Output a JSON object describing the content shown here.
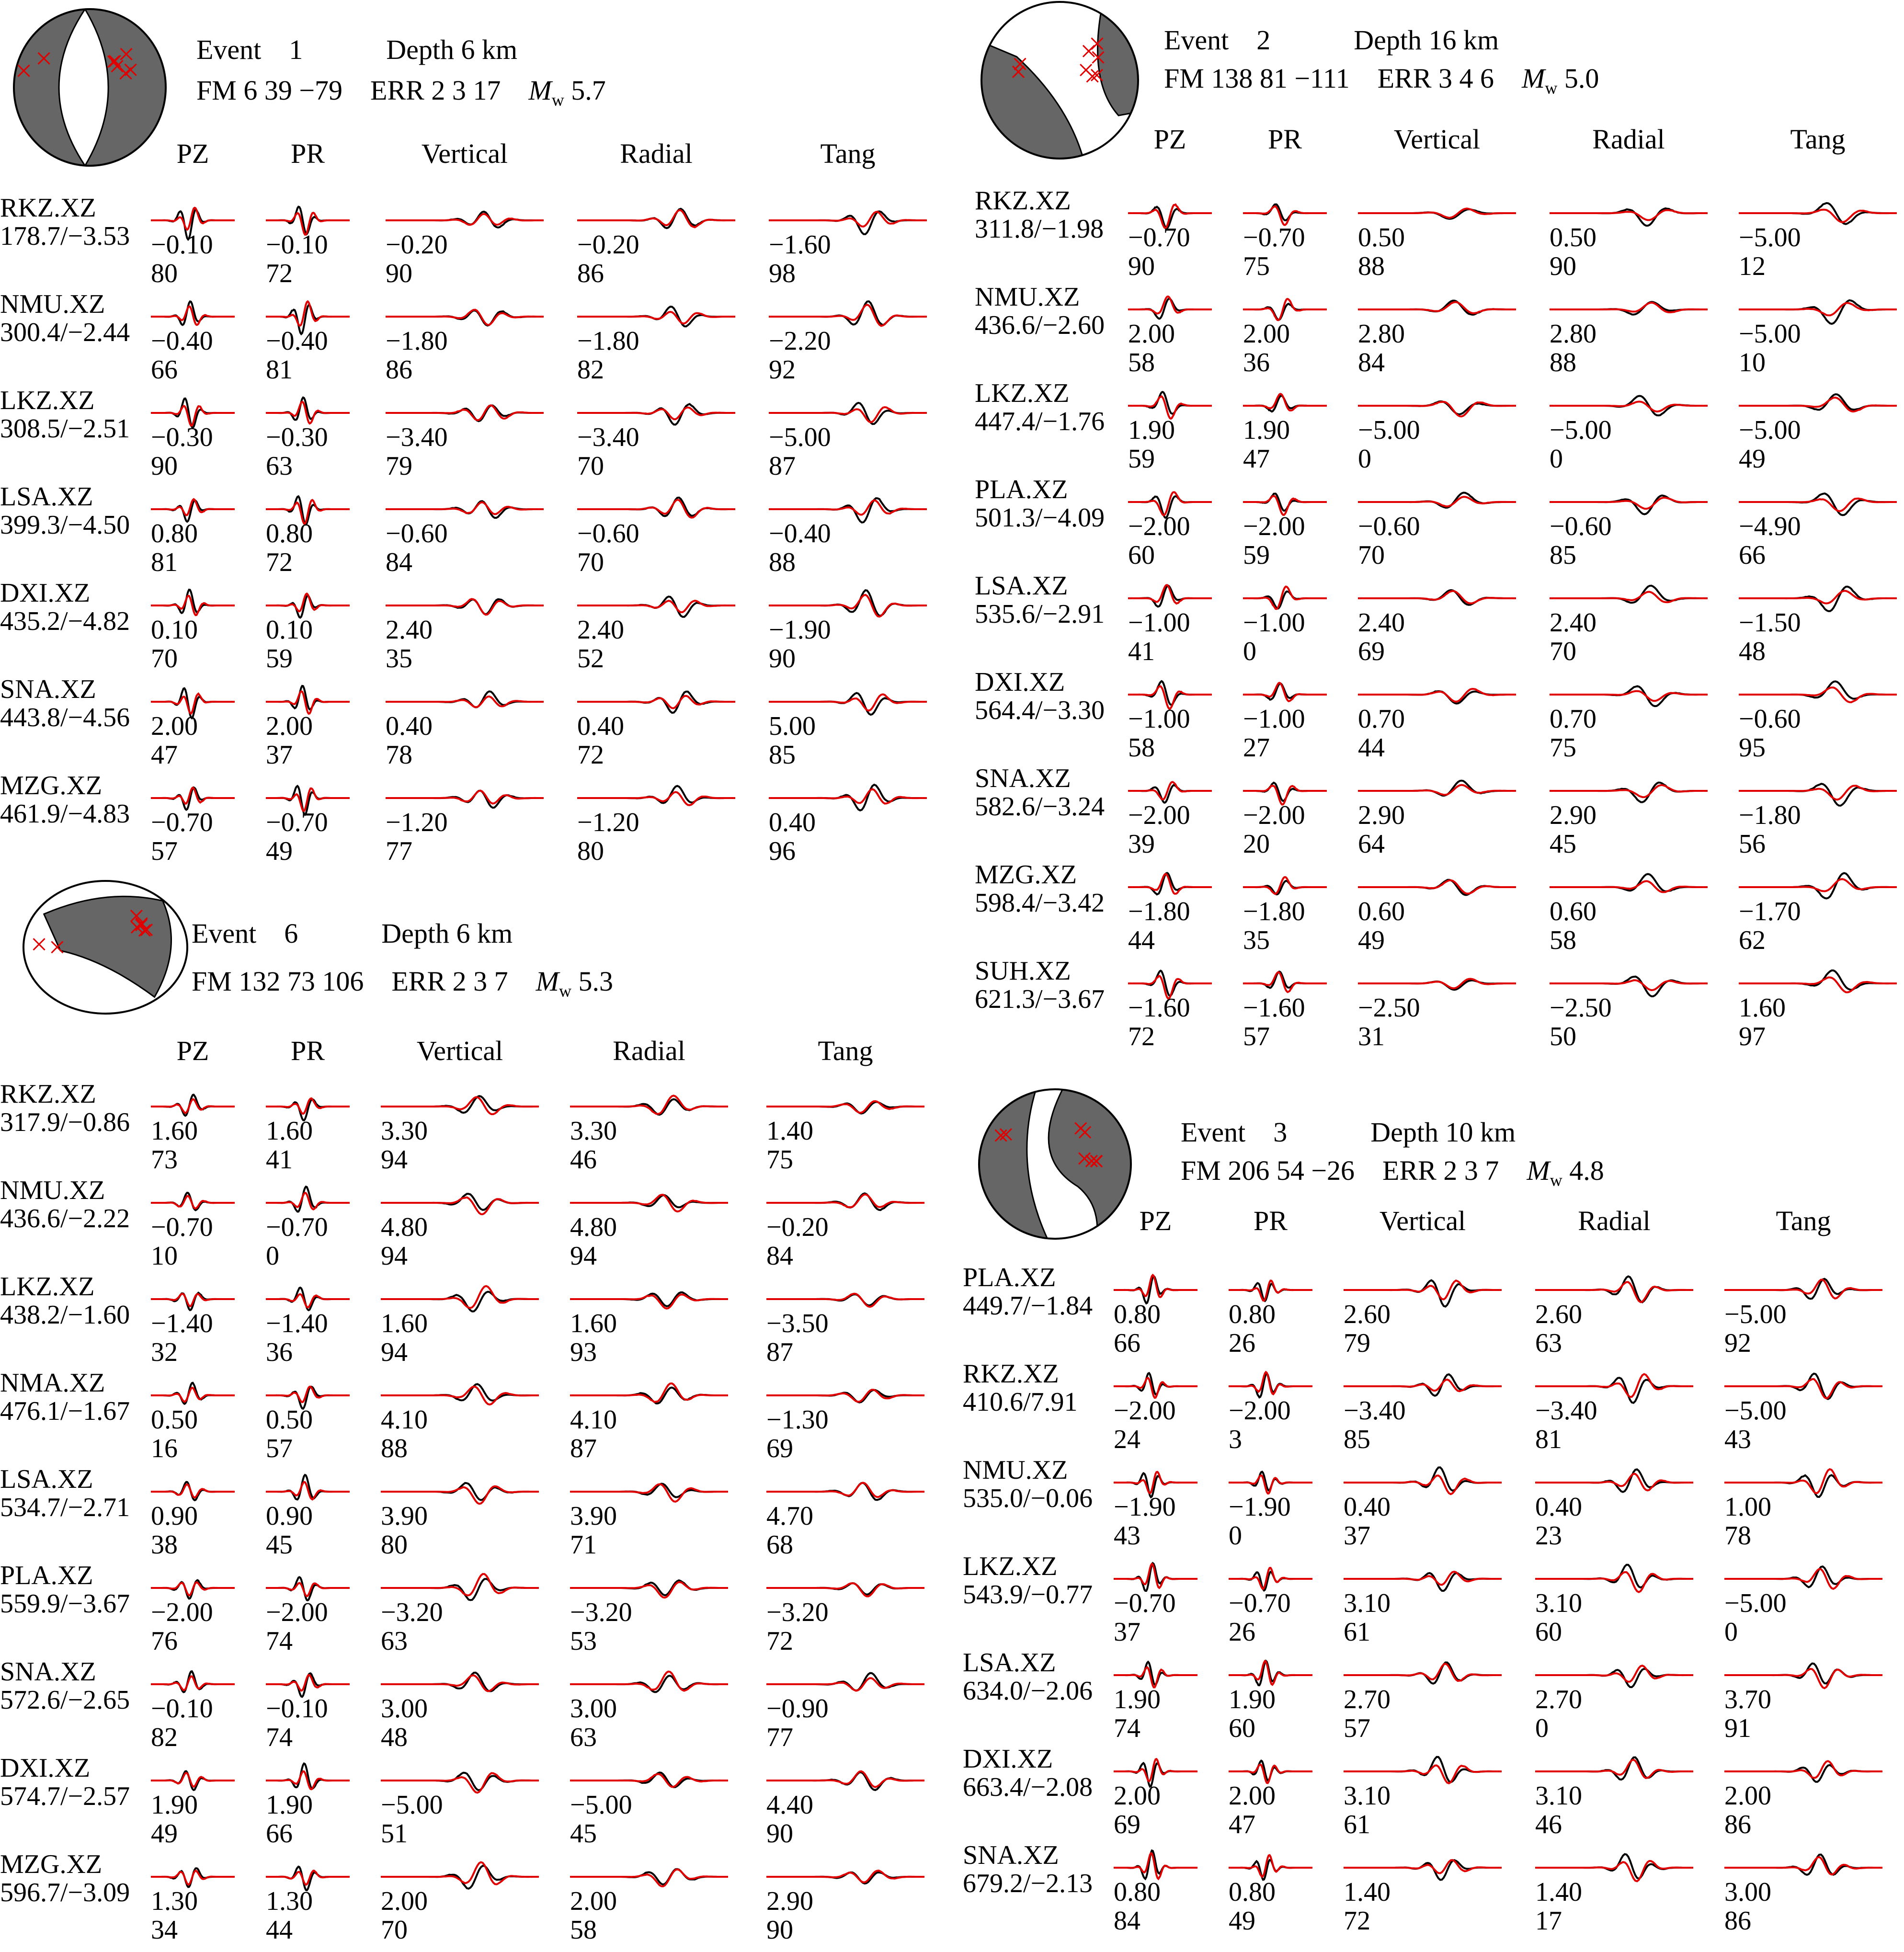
{
  "columns": [
    "PZ",
    "PR",
    "Vertical",
    "Radial",
    "Tang"
  ],
  "labels": {
    "event": "Event",
    "depth": "Depth",
    "fm": "FM",
    "err": "ERR"
  },
  "events": [
    {
      "event": "1",
      "depth": "6 km",
      "fm": "6 39 −79",
      "err": "2 3 17",
      "mw": "5.7",
      "beach": {
        "type": "normal"
      },
      "stations": [
        {
          "name": "RKZ.XZ",
          "dist": "178.7/−3.53",
          "shifts": [
            "−0.10",
            "−0.10",
            "−0.20",
            "−0.20",
            "−1.60"
          ],
          "cc": [
            "80",
            "72",
            "90",
            "86",
            "98"
          ]
        },
        {
          "name": "NMU.XZ",
          "dist": "300.4/−2.44",
          "shifts": [
            "−0.40",
            "−0.40",
            "−1.80",
            "−1.80",
            "−2.20"
          ],
          "cc": [
            "66",
            "81",
            "86",
            "82",
            "92"
          ]
        },
        {
          "name": "LKZ.XZ",
          "dist": "308.5/−2.51",
          "shifts": [
            "−0.30",
            "−0.30",
            "−3.40",
            "−3.40",
            "−5.00"
          ],
          "cc": [
            "90",
            "63",
            "79",
            "70",
            "87"
          ]
        },
        {
          "name": "LSA.XZ",
          "dist": "399.3/−4.50",
          "shifts": [
            "0.80",
            "0.80",
            "−0.60",
            "−0.60",
            "−0.40"
          ],
          "cc": [
            "81",
            "72",
            "84",
            "70",
            "88"
          ]
        },
        {
          "name": "DXI.XZ",
          "dist": "435.2/−4.82",
          "shifts": [
            "0.10",
            "0.10",
            "2.40",
            "2.40",
            "−1.90"
          ],
          "cc": [
            "70",
            "59",
            "35",
            "52",
            "90"
          ]
        },
        {
          "name": "SNA.XZ",
          "dist": "443.8/−4.56",
          "shifts": [
            "2.00",
            "2.00",
            "0.40",
            "0.40",
            "5.00"
          ],
          "cc": [
            "47",
            "37",
            "78",
            "72",
            "85"
          ]
        },
        {
          "name": "MZG.XZ",
          "dist": "461.9/−4.83",
          "shifts": [
            "−0.70",
            "−0.70",
            "−1.20",
            "−1.20",
            "0.40"
          ],
          "cc": [
            "57",
            "49",
            "77",
            "80",
            "96"
          ]
        }
      ]
    },
    {
      "event": "2",
      "depth": "16 km",
      "fm": "138 81 −111",
      "err": "3 4 6",
      "mw": "5.0",
      "beach": {
        "type": "oblique"
      },
      "stations": [
        {
          "name": "RKZ.XZ",
          "dist": "311.8/−1.98",
          "shifts": [
            "−0.70",
            "−0.70",
            "0.50",
            "0.50",
            "−5.00"
          ],
          "cc": [
            "90",
            "75",
            "88",
            "90",
            "12"
          ]
        },
        {
          "name": "NMU.XZ",
          "dist": "436.6/−2.60",
          "shifts": [
            "2.00",
            "2.00",
            "2.80",
            "2.80",
            "−5.00"
          ],
          "cc": [
            "58",
            "36",
            "84",
            "88",
            "10"
          ]
        },
        {
          "name": "LKZ.XZ",
          "dist": "447.4/−1.76",
          "shifts": [
            "1.90",
            "1.90",
            "−5.00",
            "−5.00",
            "−5.00"
          ],
          "cc": [
            "59",
            "47",
            "0",
            "0",
            "49"
          ]
        },
        {
          "name": "PLA.XZ",
          "dist": "501.3/−4.09",
          "shifts": [
            "−2.00",
            "−2.00",
            "−0.60",
            "−0.60",
            "−4.90"
          ],
          "cc": [
            "60",
            "59",
            "70",
            "85",
            "66"
          ]
        },
        {
          "name": "LSA.XZ",
          "dist": "535.6/−2.91",
          "shifts": [
            "−1.00",
            "−1.00",
            "2.40",
            "2.40",
            "−1.50"
          ],
          "cc": [
            "41",
            "0",
            "69",
            "70",
            "48"
          ]
        },
        {
          "name": "DXI.XZ",
          "dist": "564.4/−3.30",
          "shifts": [
            "−1.00",
            "−1.00",
            "0.70",
            "0.70",
            "−0.60"
          ],
          "cc": [
            "58",
            "27",
            "44",
            "75",
            "95"
          ]
        },
        {
          "name": "SNA.XZ",
          "dist": "582.6/−3.24",
          "shifts": [
            "−2.00",
            "−2.00",
            "2.90",
            "2.90",
            "−1.80"
          ],
          "cc": [
            "39",
            "20",
            "64",
            "45",
            "56"
          ]
        },
        {
          "name": "MZG.XZ",
          "dist": "598.4/−3.42",
          "shifts": [
            "−1.80",
            "−1.80",
            "0.60",
            "0.60",
            "−1.70"
          ],
          "cc": [
            "44",
            "35",
            "49",
            "58",
            "62"
          ]
        },
        {
          "name": "SUH.XZ",
          "dist": "621.3/−3.67",
          "shifts": [
            "−1.60",
            "−1.60",
            "−2.50",
            "−2.50",
            "1.60"
          ],
          "cc": [
            "72",
            "57",
            "31",
            "50",
            "97"
          ]
        }
      ]
    },
    {
      "event": "6",
      "depth": "6 km",
      "fm": "132 73 106",
      "err": "2 3 7",
      "mw": "5.3",
      "beach": {
        "type": "reverse"
      },
      "stations": [
        {
          "name": "RKZ.XZ",
          "dist": "317.9/−0.86",
          "shifts": [
            "1.60",
            "1.60",
            "3.30",
            "3.30",
            "1.40"
          ],
          "cc": [
            "73",
            "41",
            "94",
            "46",
            "75"
          ]
        },
        {
          "name": "NMU.XZ",
          "dist": "436.6/−2.22",
          "shifts": [
            "−0.70",
            "−0.70",
            "4.80",
            "4.80",
            "−0.20"
          ],
          "cc": [
            "10",
            "0",
            "94",
            "94",
            "84"
          ]
        },
        {
          "name": "LKZ.XZ",
          "dist": "438.2/−1.60",
          "shifts": [
            "−1.40",
            "−1.40",
            "1.60",
            "1.60",
            "−3.50"
          ],
          "cc": [
            "32",
            "36",
            "94",
            "93",
            "87"
          ]
        },
        {
          "name": "NMA.XZ",
          "dist": "476.1/−1.67",
          "shifts": [
            "0.50",
            "0.50",
            "4.10",
            "4.10",
            "−1.30"
          ],
          "cc": [
            "16",
            "57",
            "88",
            "87",
            "69"
          ]
        },
        {
          "name": "LSA.XZ",
          "dist": "534.7/−2.71",
          "shifts": [
            "0.90",
            "0.90",
            "3.90",
            "3.90",
            "4.70"
          ],
          "cc": [
            "38",
            "45",
            "80",
            "71",
            "68"
          ]
        },
        {
          "name": "PLA.XZ",
          "dist": "559.9/−3.67",
          "shifts": [
            "−2.00",
            "−2.00",
            "−3.20",
            "−3.20",
            "−3.20"
          ],
          "cc": [
            "76",
            "74",
            "63",
            "53",
            "72"
          ]
        },
        {
          "name": "SNA.XZ",
          "dist": "572.6/−2.65",
          "shifts": [
            "−0.10",
            "−0.10",
            "3.00",
            "3.00",
            "−0.90"
          ],
          "cc": [
            "82",
            "74",
            "48",
            "63",
            "77"
          ]
        },
        {
          "name": "DXI.XZ",
          "dist": "574.7/−2.57",
          "shifts": [
            "1.90",
            "1.90",
            "−5.00",
            "−5.00",
            "4.40"
          ],
          "cc": [
            "49",
            "66",
            "51",
            "45",
            "90"
          ]
        },
        {
          "name": "MZG.XZ",
          "dist": "596.7/−3.09",
          "shifts": [
            "1.30",
            "1.30",
            "2.00",
            "2.00",
            "2.90"
          ],
          "cc": [
            "34",
            "44",
            "70",
            "58",
            "90"
          ]
        }
      ]
    },
    {
      "event": "3",
      "depth": "10 km",
      "fm": "206 54 −26",
      "err": "2 3 7",
      "mw": "4.8",
      "beach": {
        "type": "strikeslip"
      },
      "stations": [
        {
          "name": "PLA.XZ",
          "dist": "449.7/−1.84",
          "shifts": [
            "0.80",
            "0.80",
            "2.60",
            "2.60",
            "−5.00"
          ],
          "cc": [
            "66",
            "26",
            "79",
            "63",
            "92"
          ]
        },
        {
          "name": "RKZ.XZ",
          "dist": "410.6/7.91",
          "shifts": [
            "−2.00",
            "−2.00",
            "−3.40",
            "−3.40",
            "−5.00"
          ],
          "cc": [
            "24",
            "3",
            "85",
            "81",
            "43"
          ]
        },
        {
          "name": "NMU.XZ",
          "dist": "535.0/−0.06",
          "shifts": [
            "−1.90",
            "−1.90",
            "0.40",
            "0.40",
            "1.00"
          ],
          "cc": [
            "43",
            "0",
            "37",
            "23",
            "78"
          ]
        },
        {
          "name": "LKZ.XZ",
          "dist": "543.9/−0.77",
          "shifts": [
            "−0.70",
            "−0.70",
            "3.10",
            "3.10",
            "−5.00"
          ],
          "cc": [
            "37",
            "26",
            "61",
            "60",
            "0"
          ]
        },
        {
          "name": "LSA.XZ",
          "dist": "634.0/−2.06",
          "shifts": [
            "1.90",
            "1.90",
            "2.70",
            "2.70",
            "3.70"
          ],
          "cc": [
            "74",
            "60",
            "57",
            "0",
            "91"
          ]
        },
        {
          "name": "DXI.XZ",
          "dist": "663.4/−2.08",
          "shifts": [
            "2.00",
            "2.00",
            "3.10",
            "3.10",
            "2.00"
          ],
          "cc": [
            "69",
            "47",
            "61",
            "46",
            "86"
          ]
        },
        {
          "name": "SNA.XZ",
          "dist": "679.2/−2.13",
          "shifts": [
            "0.80",
            "0.80",
            "1.40",
            "1.40",
            "3.00"
          ],
          "cc": [
            "84",
            "49",
            "72",
            "17",
            "86"
          ]
        }
      ]
    }
  ],
  "colors": {
    "observed": "#000000",
    "synthetic": "#e00000",
    "alternate": "#1010d0",
    "compressional": "#666666"
  }
}
